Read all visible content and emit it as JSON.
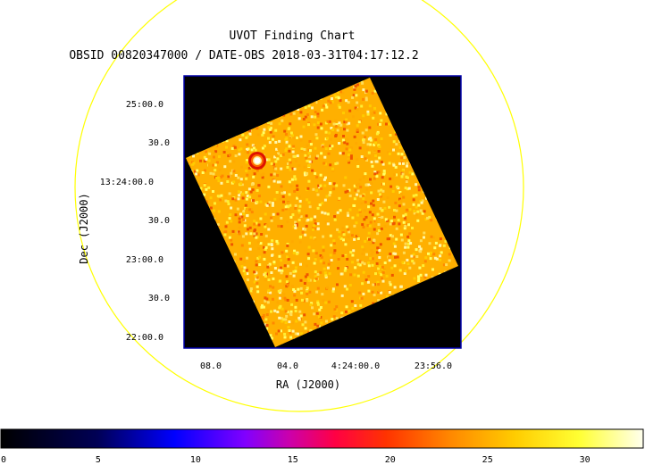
{
  "header": {
    "title": "UVOT Finding Chart",
    "subtitle": "OBSID 00820347000 / DATE-OBS 2018-03-31T04:17:12.2"
  },
  "axes": {
    "xlabel": "RA (J2000)",
    "ylabel": "Dec (J2000)",
    "x_ticks": [
      "08.0",
      "04.0",
      "4:24:00.0",
      "23:56.0"
    ],
    "y_ticks": [
      "25:00.0",
      "30.0",
      "13:24:00.0",
      "30.0",
      "23:00.0",
      "30.0",
      "22:00.0"
    ]
  },
  "colorbar": {
    "range": [
      0,
      33
    ],
    "ticks": [
      "0",
      "5",
      "10",
      "15",
      "20",
      "25",
      "30"
    ],
    "tick_values": [
      0,
      5,
      10,
      15,
      20,
      25,
      30
    ]
  },
  "colors": {
    "circle": "#ffff00",
    "frame": "#0000aa",
    "background": "#000000"
  }
}
